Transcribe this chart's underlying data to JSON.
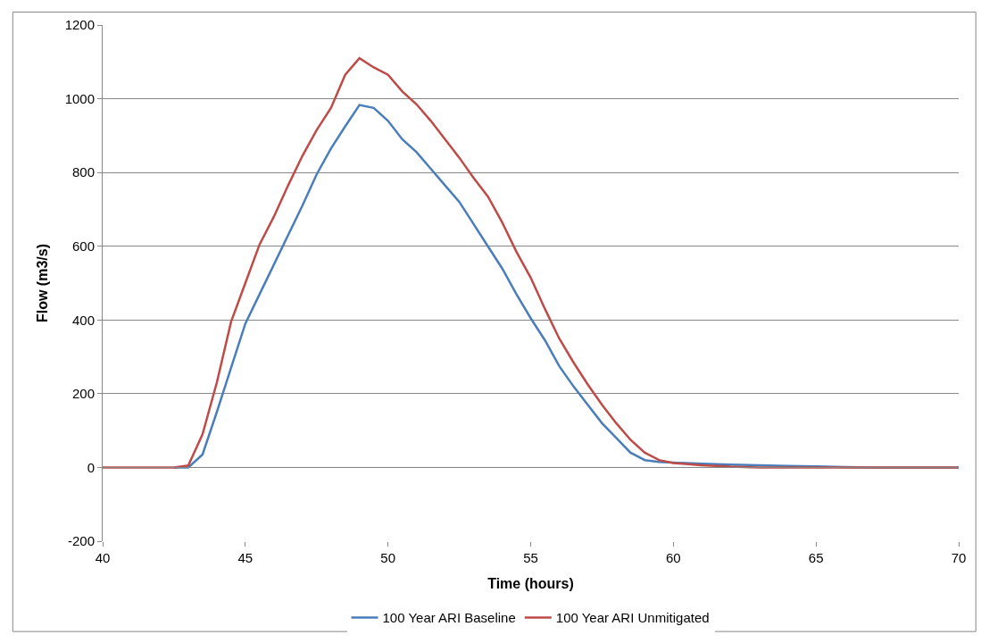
{
  "chart_data": {
    "type": "line",
    "xlabel": "Time (hours)",
    "ylabel": "Flow (m3/s)",
    "xlim": [
      40,
      70
    ],
    "xticks": [
      40,
      45,
      50,
      55,
      60,
      65,
      70
    ],
    "ylim": [
      -200,
      1200
    ],
    "yticks": [
      -200,
      0,
      200,
      400,
      600,
      800,
      1000,
      1200
    ],
    "grid": "y",
    "legend": "bottom",
    "marker": "none",
    "line_style": "solid",
    "series": [
      {
        "name": "100 Year ARI Baseline",
        "color": "#4a7ebb",
        "x": [
          42.5,
          43,
          43.5,
          44,
          44.5,
          45,
          45.5,
          46,
          46.5,
          47,
          47.5,
          48,
          48.5,
          49,
          49.5,
          50,
          50.5,
          51,
          51.5,
          52,
          52.5,
          53,
          53.5,
          54,
          54.5,
          55,
          55.5,
          56,
          56.5,
          57,
          57.5,
          58,
          58.5,
          59,
          59.5,
          60,
          61,
          62,
          63,
          64,
          65,
          66,
          67,
          70
        ],
        "values": [
          0,
          0,
          35,
          150,
          270,
          390,
          470,
          550,
          630,
          710,
          795,
          865,
          925,
          983,
          975,
          940,
          890,
          855,
          810,
          765,
          720,
          660,
          600,
          540,
          470,
          405,
          345,
          275,
          220,
          170,
          120,
          80,
          40,
          20,
          15,
          13,
          10,
          8,
          6,
          4,
          3,
          1,
          0,
          0
        ]
      },
      {
        "name": "100 Year ARI Unmitigated",
        "color": "#be4b48",
        "x": [
          40,
          41,
          42,
          42.5,
          43,
          43.5,
          44,
          44.5,
          45,
          45.5,
          46,
          46.5,
          47,
          47.5,
          48,
          48.5,
          49,
          49.5,
          50,
          50.5,
          51,
          51.5,
          52,
          52.5,
          53,
          53.5,
          54,
          54.5,
          55,
          55.5,
          56,
          56.5,
          57,
          57.5,
          58,
          58.5,
          59,
          59.5,
          60,
          61,
          62,
          63,
          64,
          65,
          66,
          67,
          70
        ],
        "values": [
          0,
          0,
          0,
          0,
          5,
          90,
          230,
          395,
          500,
          605,
          680,
          765,
          845,
          915,
          975,
          1065,
          1110,
          1085,
          1065,
          1020,
          985,
          940,
          890,
          840,
          785,
          735,
          665,
          585,
          515,
          430,
          350,
          285,
          225,
          170,
          120,
          75,
          40,
          20,
          12,
          6,
          2,
          0,
          0,
          0,
          0,
          0,
          0
        ]
      }
    ]
  }
}
